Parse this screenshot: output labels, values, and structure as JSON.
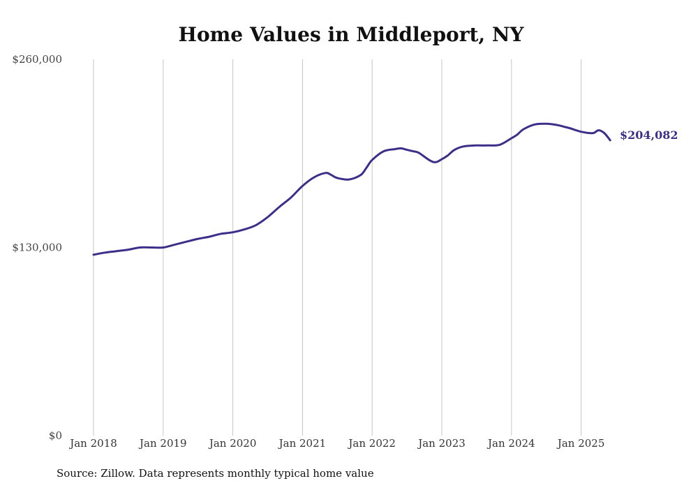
{
  "chart_data": {
    "type": "line",
    "title": "Home Values in Middleport, NY",
    "xlabel": "",
    "ylabel": "",
    "ylim": [
      0,
      260000
    ],
    "ytick_values": [
      0,
      130000,
      260000
    ],
    "ytick_labels": [
      "$0",
      "$130,000",
      "$260,000"
    ],
    "xtick_labels": [
      "Jan 2018",
      "Jan 2019",
      "Jan 2020",
      "Jan 2021",
      "Jan 2022",
      "Jan 2023",
      "Jan 2024",
      "Jan 2025"
    ],
    "grid": "vertical",
    "line_color": "#3b2f8a",
    "series": [
      {
        "x": [
          "2018-01",
          "2018-03",
          "2018-05",
          "2018-07",
          "2018-09",
          "2018-11",
          "2019-01",
          "2019-03",
          "2019-05",
          "2019-07",
          "2019-09",
          "2019-11",
          "2020-01",
          "2020-03",
          "2020-05",
          "2020-07",
          "2020-09",
          "2020-11",
          "2021-01",
          "2021-03",
          "2021-05",
          "2021-06",
          "2021-07",
          "2021-09",
          "2021-11",
          "2021-12",
          "2022-01",
          "2022-03",
          "2022-05",
          "2022-06",
          "2022-07",
          "2022-08",
          "2022-09",
          "2022-11",
          "2022-12",
          "2023-01",
          "2023-02",
          "2023-03",
          "2023-04",
          "2023-05",
          "2023-07",
          "2023-09",
          "2023-11",
          "2024-01",
          "2024-02",
          "2024-03",
          "2024-05",
          "2024-07",
          "2024-09",
          "2024-10",
          "2024-11",
          "2025-01",
          "2025-03",
          "2025-04",
          "2025-05",
          "2025-06"
        ],
        "values": [
          125000,
          126500,
          127500,
          128500,
          130000,
          130000,
          130000,
          132000,
          134000,
          136000,
          137500,
          139500,
          140500,
          142500,
          145500,
          151000,
          158000,
          164500,
          172500,
          178500,
          181500,
          180000,
          178000,
          177000,
          180000,
          185000,
          190500,
          196500,
          198000,
          198500,
          197500,
          196500,
          195500,
          190000,
          189000,
          191000,
          193500,
          197000,
          199000,
          200000,
          200500,
          200500,
          201000,
          205500,
          208000,
          211500,
          215000,
          215500,
          214500,
          213500,
          212500,
          210000,
          209000,
          211000,
          209000,
          204082
        ]
      }
    ],
    "end_label": "$204,082",
    "source": "Source: Zillow. Data represents monthly typical home value"
  }
}
